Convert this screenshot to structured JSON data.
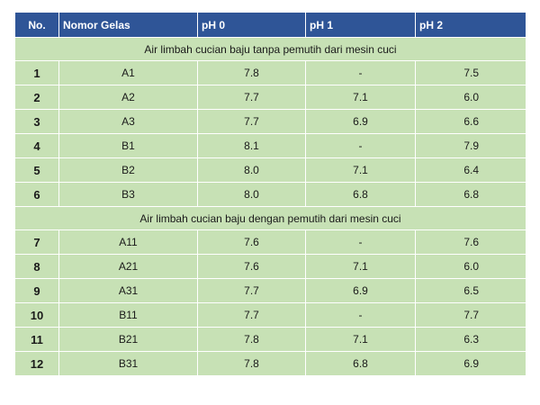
{
  "headers": [
    "No.",
    "Nomor Gelas",
    "pH 0",
    "pH 1",
    "pH 2"
  ],
  "sections": [
    {
      "title": "Air limbah cucian baju tanpa pemutih dari mesin cuci",
      "rows": [
        {
          "no": "1",
          "gelas": "A1",
          "ph0": "7.8",
          "ph1": "-",
          "ph2": "7.5"
        },
        {
          "no": "2",
          "gelas": "A2",
          "ph0": "7.7",
          "ph1": "7.1",
          "ph2": "6.0"
        },
        {
          "no": "3",
          "gelas": "A3",
          "ph0": "7.7",
          "ph1": "6.9",
          "ph2": "6.6"
        },
        {
          "no": "4",
          "gelas": "B1",
          "ph0": "8.1",
          "ph1": "-",
          "ph2": "7.9"
        },
        {
          "no": "5",
          "gelas": "B2",
          "ph0": "8.0",
          "ph1": "7.1",
          "ph2": "6.4"
        },
        {
          "no": "6",
          "gelas": "B3",
          "ph0": "8.0",
          "ph1": "6.8",
          "ph2": "6.8"
        }
      ]
    },
    {
      "title": "Air limbah cucian baju dengan pemutih dari mesin cuci",
      "rows": [
        {
          "no": "7",
          "gelas": "A11",
          "ph0": "7.6",
          "ph1": "-",
          "ph2": "7.6"
        },
        {
          "no": "8",
          "gelas": "A21",
          "ph0": "7.6",
          "ph1": "7.1",
          "ph2": "6.0"
        },
        {
          "no": "9",
          "gelas": "A31",
          "ph0": "7.7",
          "ph1": "6.9",
          "ph2": "6.5"
        },
        {
          "no": "10",
          "gelas": "B11",
          "ph0": "7.7",
          "ph1": "-",
          "ph2": "7.7"
        },
        {
          "no": "11",
          "gelas": "B21",
          "ph0": "7.8",
          "ph1": "7.1",
          "ph2": "6.3"
        },
        {
          "no": "12",
          "gelas": "B31",
          "ph0": "7.8",
          "ph1": "6.8",
          "ph2": "6.9"
        }
      ]
    }
  ],
  "colors": {
    "header_bg": "#2f5597",
    "row_bg": "#c7e1b5"
  }
}
